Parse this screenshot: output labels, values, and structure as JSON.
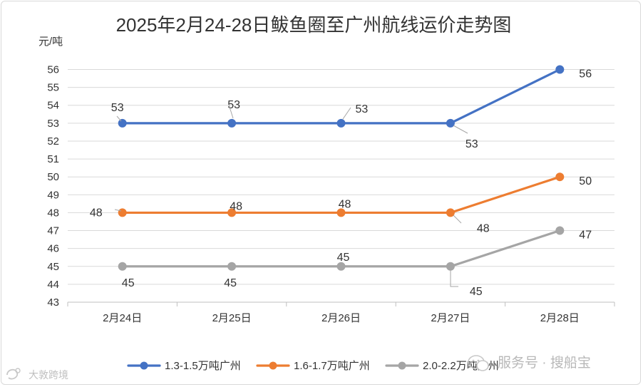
{
  "chart_data": {
    "type": "line",
    "title": "2025年2月24-28日鲅鱼圈至广州航线运价走势图",
    "ylabel": "元/吨",
    "xlabel": "",
    "ylim": [
      43,
      56
    ],
    "yticks": [
      43,
      44,
      45,
      46,
      47,
      48,
      49,
      50,
      51,
      52,
      53,
      54,
      55,
      56
    ],
    "categories": [
      "2月24日",
      "2月25日",
      "2月26日",
      "2月27日",
      "2月28日"
    ],
    "grid": true,
    "legend_position": "bottom",
    "series": [
      {
        "name": "1.3-1.5万吨广州",
        "color": "#4472c4",
        "values": [
          53,
          53,
          53,
          53,
          56
        ]
      },
      {
        "name": "1.6-1.7万吨广州",
        "color": "#ed7d31",
        "values": [
          48,
          48,
          48,
          48,
          50
        ]
      },
      {
        "name": "2.0-2.2万吨广州",
        "color": "#a5a5a5",
        "values": [
          45,
          45,
          45,
          45,
          47
        ]
      }
    ]
  },
  "watermark": {
    "main": "服务号 · 搜船宝",
    "corner": "大敦跨境"
  }
}
